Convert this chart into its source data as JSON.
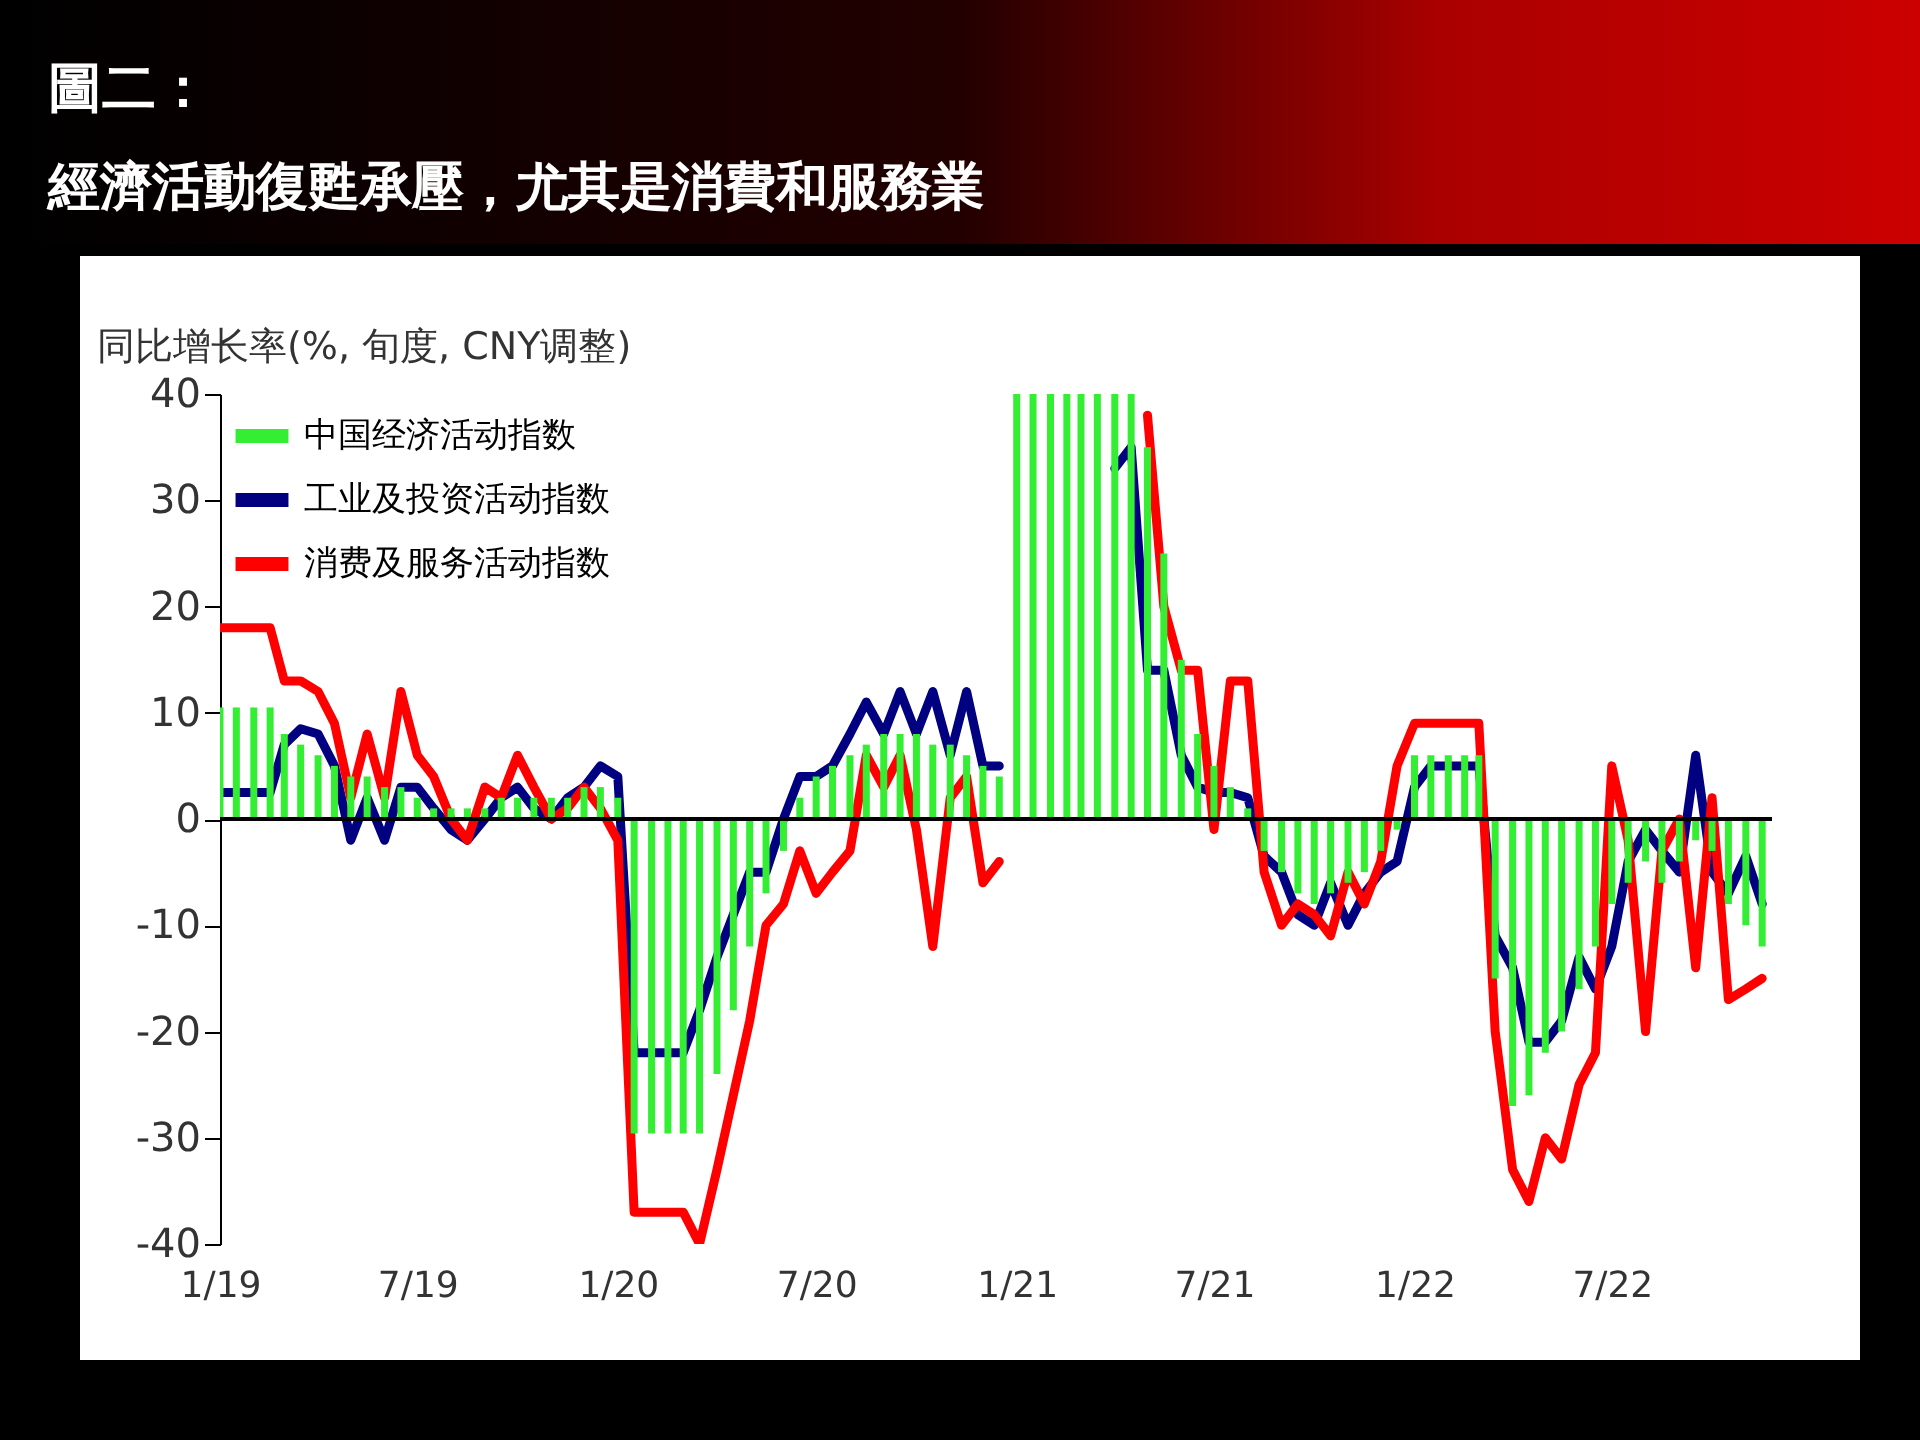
{
  "chart_data": {
    "type": "bar",
    "title": "圖二：",
    "subtitle": "經濟活動復甦承壓，尤其是消費和服務業",
    "ylabel": "同比增长率(%, 旬度, CNY调整)",
    "x": [
      "2019-01-01",
      "2019-01-16",
      "2019-02-01",
      "2019-02-16",
      "2019-03-01",
      "2019-03-16",
      "2019-04-01",
      "2019-04-16",
      "2019-05-01",
      "2019-05-16",
      "2019-06-01",
      "2019-06-16",
      "2019-07-01",
      "2019-07-16",
      "2019-08-01",
      "2019-08-16",
      "2019-09-01",
      "2019-09-16",
      "2019-10-01",
      "2019-10-16",
      "2019-11-01",
      "2019-11-16",
      "2019-12-01",
      "2019-12-16",
      "2020-01-01",
      "2020-01-16",
      "2020-02-01",
      "2020-02-16",
      "2020-03-01",
      "2020-03-16",
      "2020-04-01",
      "2020-04-16",
      "2020-05-01",
      "2020-05-16",
      "2020-06-01",
      "2020-06-16",
      "2020-07-01",
      "2020-07-16",
      "2020-08-01",
      "2020-08-16",
      "2020-09-01",
      "2020-09-16",
      "2020-10-01",
      "2020-10-16",
      "2020-11-01",
      "2020-11-16",
      "2020-12-01",
      "2020-12-16",
      "2021-01-01",
      "2021-01-16",
      "2021-02-01",
      "2021-02-16",
      "2021-03-01",
      "2021-03-16",
      "2021-04-01",
      "2021-04-16",
      "2021-05-01",
      "2021-05-16",
      "2021-06-01",
      "2021-06-16",
      "2021-07-01",
      "2021-07-16",
      "2021-08-01",
      "2021-08-16",
      "2021-09-01",
      "2021-09-16",
      "2021-10-01",
      "2021-10-16",
      "2021-11-01",
      "2021-11-16",
      "2021-12-01",
      "2021-12-16",
      "2022-01-01",
      "2022-01-16",
      "2022-02-01",
      "2022-02-16",
      "2022-03-01",
      "2022-03-16",
      "2022-04-01",
      "2022-04-16",
      "2022-05-01",
      "2022-05-16",
      "2022-06-01",
      "2022-06-16",
      "2022-07-01",
      "2022-07-16",
      "2022-08-01",
      "2022-08-16",
      "2022-09-01",
      "2022-09-16",
      "2022-10-01",
      "2022-10-16",
      "2022-11-01",
      "2022-11-16"
    ],
    "series": [
      {
        "name": "中国经济活动指数",
        "color": "#33ee33",
        "values": [
          10.5,
          10.5,
          10.5,
          10.5,
          8,
          7,
          6,
          5,
          4,
          4,
          3,
          3,
          2,
          1,
          1,
          1,
          1,
          2,
          2,
          2,
          2,
          2,
          3,
          3,
          2,
          -29.6,
          -29.6,
          -29.6,
          -29.6,
          -29.6,
          -24,
          -18,
          -12,
          -7,
          -3,
          2,
          4,
          5,
          6,
          7,
          8,
          8,
          8,
          7,
          7,
          6,
          5,
          4,
          40,
          40,
          40,
          40,
          40,
          40,
          40,
          40,
          35,
          25,
          15,
          8,
          5,
          3,
          1,
          -3,
          -5,
          -7,
          -8,
          -7,
          -6,
          -5,
          -3,
          -1,
          6,
          6,
          6,
          6,
          6,
          -15,
          -27,
          -26,
          -22,
          -20,
          -16,
          -12,
          -8,
          -6,
          -4,
          -6,
          -4,
          -2,
          -3,
          -8,
          -10,
          -12
        ]
      },
      {
        "name": "工业及投资活动指数",
        "type": "line",
        "color": "#000080",
        "values": [
          2.5,
          2.5,
          2.5,
          2.5,
          7,
          8.5,
          8,
          5,
          -2,
          2,
          -2,
          3,
          3,
          1,
          -1,
          -2,
          0,
          2,
          3,
          1,
          0,
          2,
          3,
          5,
          4,
          -22,
          -22,
          -22,
          -22,
          -18,
          -13,
          -9,
          -5,
          -5,
          0,
          4,
          4,
          5,
          8,
          11,
          8,
          12,
          8,
          12,
          6,
          12,
          5,
          5,
          null,
          null,
          null,
          null,
          null,
          null,
          33,
          35,
          14,
          14,
          6,
          3,
          2.5,
          2.5,
          2,
          -3.5,
          -5,
          -9,
          -10,
          -6,
          -10,
          -7,
          -5,
          -4,
          3,
          5,
          5,
          5,
          5,
          -11,
          -14,
          -21,
          -21,
          -19,
          -13,
          -16,
          -12,
          -4,
          -1,
          -3,
          -5,
          6,
          -5,
          -7,
          -3.5,
          -8
        ]
      },
      {
        "name": "消费及服务活动指数",
        "type": "line",
        "color": "#ff0000",
        "values": [
          18,
          18,
          18,
          18,
          13,
          13,
          12,
          9,
          2,
          8,
          2,
          12,
          6,
          4,
          0,
          -2,
          3,
          2,
          6,
          3,
          0,
          1,
          3,
          1,
          -2,
          -37,
          -37,
          -37,
          -37,
          -40,
          -33,
          -26,
          -19,
          -10,
          -8,
          -3,
          -7,
          -5,
          -3,
          6,
          3,
          6,
          -1,
          -12,
          2,
          4,
          -6,
          -4,
          null,
          null,
          null,
          null,
          null,
          null,
          null,
          null,
          38,
          20,
          14,
          14,
          -1,
          13,
          13,
          -5,
          -10,
          -8,
          -9,
          -11,
          -5,
          -8,
          -4,
          5,
          9,
          9,
          9,
          9,
          9,
          -20,
          -33,
          -36,
          -30,
          -32,
          -25,
          -22,
          5,
          -2,
          -20,
          -3,
          0,
          -14,
          2,
          -17,
          -16,
          -15
        ]
      }
    ],
    "xlim": [
      "2019-01-01",
      "2022-11-25"
    ],
    "xticks": [
      {
        "value": "2019-01-01",
        "label": "1/19"
      },
      {
        "value": "2019-07-01",
        "label": "7/19"
      },
      {
        "value": "2020-01-01",
        "label": "1/20"
      },
      {
        "value": "2020-07-01",
        "label": "7/20"
      },
      {
        "value": "2021-01-01",
        "label": "1/21"
      },
      {
        "value": "2021-07-01",
        "label": "7/21"
      },
      {
        "value": "2022-01-01",
        "label": "1/22"
      },
      {
        "value": "2022-07-01",
        "label": "7/22"
      }
    ],
    "ylim": [
      -40,
      40
    ],
    "yticks": [
      -40,
      -30,
      -20,
      -10,
      0,
      10,
      20,
      30,
      40
    ],
    "ref_lines": [
      {
        "axis": "y",
        "value": 0,
        "color": "#000000"
      }
    ],
    "grid": false,
    "legend": "top left"
  }
}
